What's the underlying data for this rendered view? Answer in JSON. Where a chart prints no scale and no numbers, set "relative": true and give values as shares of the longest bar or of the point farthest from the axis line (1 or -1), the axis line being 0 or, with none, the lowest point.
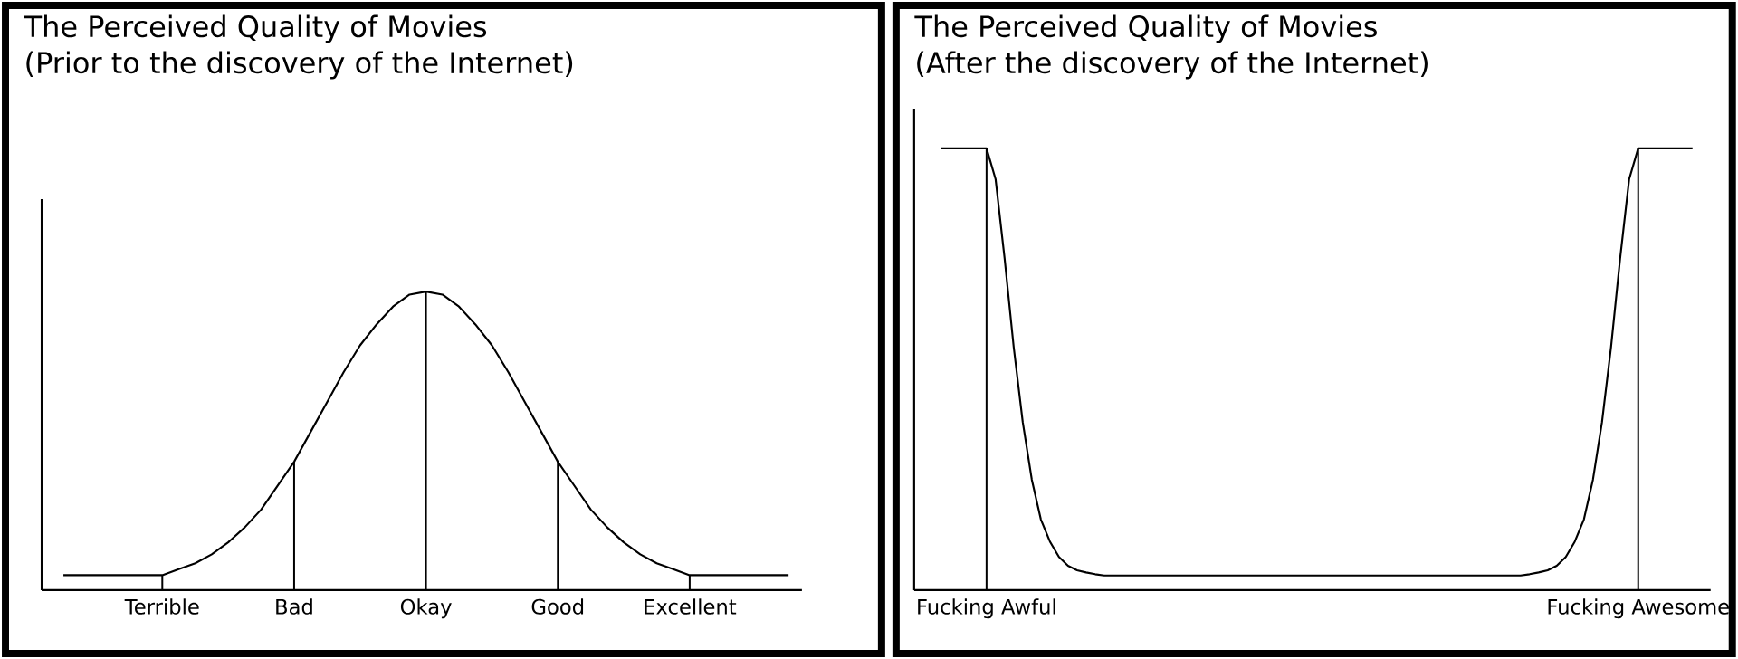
{
  "chart_data": [
    {
      "type": "line",
      "title": "The Perceived Quality of Movies",
      "subtitle": "(Prior to the discovery of the Internet)",
      "relative": true,
      "marker": "none",
      "categories": [
        null,
        null,
        null,
        null,
        null,
        null,
        "Terrible",
        null,
        null,
        null,
        null,
        null,
        null,
        null,
        "Bad",
        null,
        null,
        null,
        null,
        null,
        null,
        null,
        "Okay",
        null,
        null,
        null,
        null,
        null,
        null,
        null,
        "Good",
        null,
        null,
        null,
        null,
        null,
        null,
        null,
        "Excellent",
        null,
        null,
        null,
        null,
        null,
        null
      ],
      "series": [
        {
          "color": "#000000",
          "values": [
            0.05,
            0.05,
            0.05,
            0.05,
            0.05,
            0.05,
            0.05,
            0.07,
            0.09,
            0.12,
            0.16,
            0.21,
            0.27,
            0.35,
            0.43,
            0.53,
            0.63,
            0.73,
            0.82,
            0.89,
            0.95,
            0.99,
            1.0,
            0.99,
            0.95,
            0.89,
            0.82,
            0.73,
            0.63,
            0.53,
            0.43,
            0.35,
            0.27,
            0.21,
            0.16,
            0.12,
            0.09,
            0.07,
            0.05,
            0.05,
            0.05,
            0.05,
            0.05,
            0.05,
            0.05
          ]
        },
        {
          "type": "bar",
          "color": "#000000",
          "values": [
            null,
            null,
            null,
            null,
            null,
            null,
            0.05,
            null,
            null,
            null,
            null,
            null,
            null,
            null,
            0.43,
            null,
            null,
            null,
            null,
            null,
            null,
            null,
            1.0,
            null,
            null,
            null,
            null,
            null,
            null,
            null,
            0.43,
            null,
            null,
            null,
            null,
            null,
            null,
            null,
            0.05,
            null,
            null,
            null,
            null,
            null,
            null
          ]
        }
      ]
    },
    {
      "type": "line",
      "title": "The Perceived Quality of Movies",
      "subtitle": "(After the discovery of the Internet)",
      "relative": true,
      "marker": "none",
      "categories": [
        null,
        null,
        null,
        null,
        null,
        "Fucking Awful",
        null,
        null,
        null,
        null,
        null,
        null,
        null,
        null,
        null,
        null,
        null,
        null,
        null,
        null,
        null,
        null,
        null,
        null,
        null,
        null,
        null,
        null,
        null,
        null,
        null,
        null,
        null,
        null,
        null,
        null,
        null,
        null,
        null,
        null,
        null,
        null,
        null,
        null,
        null,
        null,
        null,
        null,
        null,
        null,
        null,
        null,
        null,
        null,
        null,
        null,
        null,
        null,
        null,
        null,
        null,
        null,
        null,
        null,
        null,
        null,
        null,
        null,
        null,
        null,
        null,
        null,
        null,
        null,
        null,
        null,
        null,
        "Fucking Awesome",
        null,
        null,
        null,
        null,
        null,
        null
      ],
      "series": [
        {
          "color": "#000000",
          "values": [
            1,
            1,
            1,
            1,
            1,
            1,
            0.93,
            0.75,
            0.55,
            0.38,
            0.25,
            0.16,
            0.11,
            0.075,
            0.055,
            0.045,
            0.04,
            0.036,
            0.033,
            0.033,
            0.033,
            0.033,
            0.033,
            0.033,
            0.033,
            0.033,
            0.033,
            0.033,
            0.033,
            0.033,
            0.033,
            0.033,
            0.033,
            0.033,
            0.033,
            0.033,
            0.033,
            0.033,
            0.033,
            0.033,
            0.033,
            0.033,
            0.033,
            0.033,
            0.033,
            0.033,
            0.033,
            0.033,
            0.033,
            0.033,
            0.033,
            0.033,
            0.033,
            0.033,
            0.033,
            0.033,
            0.033,
            0.033,
            0.033,
            0.033,
            0.033,
            0.033,
            0.033,
            0.033,
            0.033,
            0.036,
            0.04,
            0.045,
            0.055,
            0.075,
            0.11,
            0.16,
            0.25,
            0.38,
            0.55,
            0.75,
            0.93,
            1,
            1,
            1,
            1,
            1,
            1,
            1
          ]
        },
        {
          "type": "bar",
          "color": "#000000",
          "values": [
            null,
            null,
            null,
            null,
            null,
            1,
            null,
            null,
            null,
            null,
            null,
            null,
            null,
            null,
            null,
            null,
            null,
            null,
            null,
            null,
            null,
            null,
            null,
            null,
            null,
            null,
            null,
            null,
            null,
            null,
            null,
            null,
            null,
            null,
            null,
            null,
            null,
            null,
            null,
            null,
            null,
            null,
            null,
            null,
            null,
            null,
            null,
            null,
            null,
            null,
            null,
            null,
            null,
            null,
            null,
            null,
            null,
            null,
            null,
            null,
            null,
            null,
            null,
            null,
            null,
            null,
            null,
            null,
            null,
            null,
            null,
            null,
            null,
            null,
            null,
            null,
            null,
            1,
            null,
            null,
            null,
            null,
            null,
            null
          ]
        }
      ]
    }
  ]
}
